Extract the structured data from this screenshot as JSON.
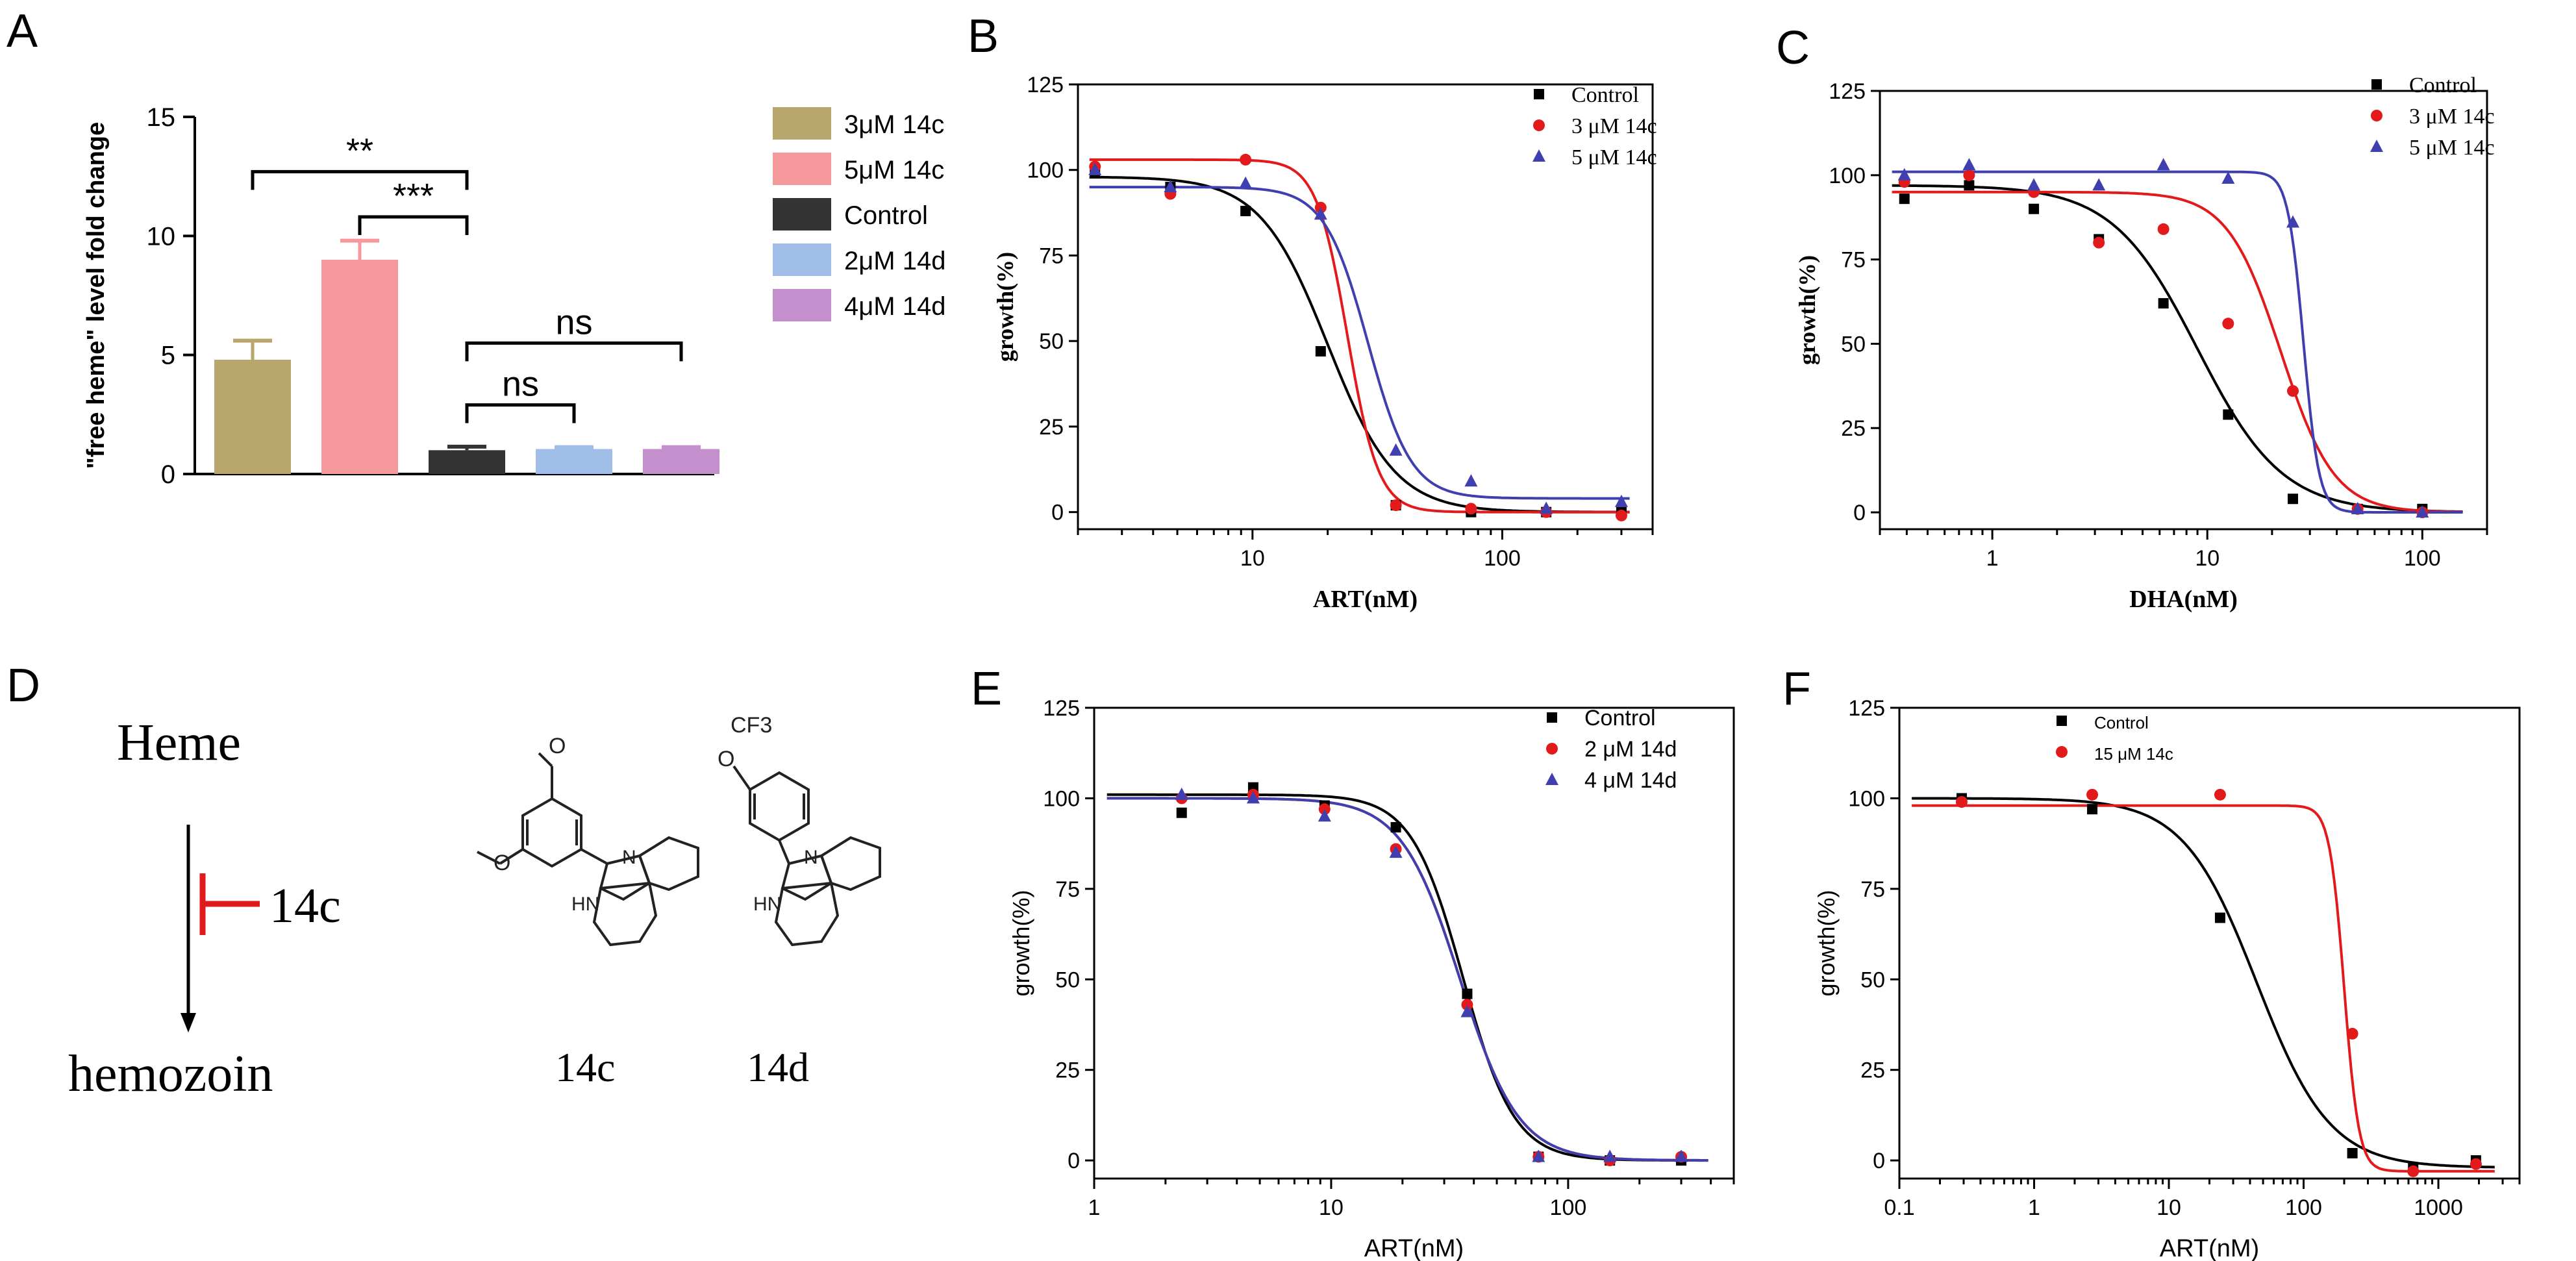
{
  "figure": {
    "panel_labels": [
      "A",
      "B",
      "C",
      "D",
      "E",
      "F"
    ]
  },
  "scheme": {
    "top": "Heme",
    "bottom": "hemozoin",
    "inhibitor": "14c",
    "compounds": [
      {
        "name": "14c",
        "substituent_label": "O"
      },
      {
        "name": "14d",
        "substituent_label": "CF3"
      }
    ],
    "ring_labels": {
      "hn": "HN",
      "n": "N"
    },
    "colors": {
      "inhibition": "#e31a1c",
      "arrow": "#000000"
    }
  },
  "chart_data": [
    {
      "panel": "A",
      "type": "bar",
      "ylabel": "\"free heme\" level fold change",
      "xlabel": "",
      "ylim": [
        0,
        15
      ],
      "yticks": [
        0,
        5,
        10,
        15
      ],
      "categories": [
        "3μM 14c",
        "5μM 14c",
        "Control",
        "2μM 14d",
        "4μM 14d"
      ],
      "values": [
        4.8,
        9.0,
        1.0,
        1.05,
        1.05
      ],
      "errors": [
        0.8,
        0.8,
        0.15,
        0.08,
        0.08
      ],
      "colors": [
        "#b9a66c",
        "#f5999c",
        "#333333",
        "#9fbde6",
        "#c38fcd"
      ],
      "legend": [
        "3μM 14c",
        "5μM 14c",
        "Control",
        "2μM 14d",
        "4μM 14d"
      ],
      "annotations": [
        {
          "text": "**",
          "from": 0,
          "to": 2,
          "y": 12.7
        },
        {
          "text": "***",
          "from": 1,
          "to": 2,
          "y": 10.8
        },
        {
          "text": "ns",
          "from": 2,
          "to": 4,
          "y": 5.5
        },
        {
          "text": "ns",
          "from": 2,
          "to": 3,
          "y": 2.9
        }
      ]
    },
    {
      "panel": "B",
      "type": "scatter",
      "xscale": "log",
      "xlabel": "ART(nM)",
      "ylabel": "growth(%)",
      "xlim": [
        2,
        400
      ],
      "ylim": [
        -5,
        125
      ],
      "xticks": [
        10,
        100
      ],
      "yticks": [
        0,
        25,
        50,
        75,
        100,
        125
      ],
      "legend_position": "top-right",
      "series": [
        {
          "name": "Control",
          "color": "#000000",
          "marker": "square",
          "fit": {
            "top": 98,
            "bottom": 0,
            "ec50": 20,
            "hill": 3.2
          },
          "x": [
            2.34,
            4.69,
            9.38,
            18.75,
            37.5,
            75,
            150,
            300
          ],
          "y": [
            99,
            95,
            88,
            47,
            2,
            0,
            0,
            0
          ]
        },
        {
          "name": "3 μM 14c",
          "color": "#e31a1c",
          "marker": "circle",
          "fit": {
            "top": 103,
            "bottom": 0,
            "ec50": 24,
            "hill": 7
          },
          "x": [
            2.34,
            4.69,
            9.38,
            18.75,
            37.5,
            75,
            150,
            300
          ],
          "y": [
            101,
            93,
            103,
            89,
            2,
            1,
            0,
            -1
          ]
        },
        {
          "name": "5 μM 14c",
          "color": "#3f3fb0",
          "marker": "triangle",
          "fit": {
            "top": 95,
            "bottom": 4,
            "ec50": 29,
            "hill": 5
          },
          "x": [
            2.34,
            4.69,
            9.38,
            18.75,
            37.5,
            75,
            150,
            300
          ],
          "y": [
            100,
            95,
            96,
            87,
            18,
            9,
            1,
            3
          ]
        }
      ]
    },
    {
      "panel": "C",
      "type": "scatter",
      "xscale": "log",
      "xlabel": "DHA(nM)",
      "ylabel": "growth(%)",
      "xlim": [
        0.3,
        200
      ],
      "ylim": [
        -5,
        125
      ],
      "xticks": [
        1,
        10,
        100
      ],
      "yticks": [
        0,
        25,
        50,
        75,
        100,
        125
      ],
      "legend_position": "top-right",
      "series": [
        {
          "name": "Control",
          "color": "#000000",
          "marker": "square",
          "fit": {
            "top": 97,
            "bottom": 0,
            "ec50": 9,
            "hill": 2.2
          },
          "x": [
            0.39,
            0.78,
            1.56,
            3.13,
            6.25,
            12.5,
            25,
            50,
            100
          ],
          "y": [
            93,
            97,
            90,
            81,
            62,
            29,
            4,
            1,
            1
          ]
        },
        {
          "name": "3 μM 14c",
          "color": "#e31a1c",
          "marker": "circle",
          "fit": {
            "top": 95,
            "bottom": 0,
            "ec50": 22,
            "hill": 3.5
          },
          "x": [
            0.39,
            0.78,
            1.56,
            3.13,
            6.25,
            12.5,
            25,
            50,
            100
          ],
          "y": [
            98,
            100,
            95,
            80,
            84,
            56,
            36,
            1,
            0
          ]
        },
        {
          "name": "5 μM 14c",
          "color": "#3f3fb0",
          "marker": "triangle",
          "fit": {
            "top": 101,
            "bottom": 0,
            "ec50": 28,
            "hill": 12
          },
          "x": [
            0.39,
            0.78,
            1.56,
            3.13,
            6.25,
            12.5,
            25,
            50,
            100
          ],
          "y": [
            100,
            103,
            97,
            97,
            103,
            99,
            86,
            1,
            0
          ]
        }
      ]
    },
    {
      "panel": "E",
      "type": "scatter",
      "xscale": "log",
      "xlabel": "ART(nM)",
      "ylabel": "growth(%)",
      "xlim": [
        1,
        500
      ],
      "ylim": [
        -5,
        125
      ],
      "xticks": [
        1,
        10,
        100
      ],
      "yticks": [
        0,
        25,
        50,
        75,
        100,
        125
      ],
      "legend_position": "top-right",
      "series": [
        {
          "name": "Control",
          "color": "#000000",
          "marker": "square",
          "fit": {
            "top": 101,
            "bottom": 0,
            "ec50": 36,
            "hill": 4
          },
          "x": [
            2.34,
            4.69,
            9.38,
            18.75,
            37.5,
            75,
            150,
            300
          ],
          "y": [
            96,
            103,
            98,
            92,
            46,
            1,
            0,
            0
          ]
        },
        {
          "name": "2 μM 14d",
          "color": "#e31a1c",
          "marker": "circle",
          "fit": {
            "top": 100,
            "bottom": 0,
            "ec50": 35,
            "hill": 3.5
          },
          "x": [
            2.34,
            4.69,
            9.38,
            18.75,
            37.5,
            75,
            150,
            300
          ],
          "y": [
            100,
            101,
            97,
            86,
            43,
            1,
            0,
            1
          ]
        },
        {
          "name": "4 μM 14d",
          "color": "#3f3fb0",
          "marker": "triangle",
          "fit": {
            "top": 100,
            "bottom": 0,
            "ec50": 35,
            "hill": 3.5
          },
          "x": [
            2.34,
            4.69,
            9.38,
            18.75,
            37.5,
            75,
            150,
            300
          ],
          "y": [
            101,
            100,
            95,
            85,
            41,
            1,
            1,
            1
          ]
        }
      ]
    },
    {
      "panel": "F",
      "type": "scatter",
      "xscale": "log",
      "xlabel": "ART(nM)",
      "ylabel": "growth(%)",
      "xlim": [
        0.1,
        4000
      ],
      "ylim": [
        -5,
        125
      ],
      "xticks": [
        0.1,
        1,
        10,
        100,
        1000
      ],
      "yticks": [
        0,
        25,
        50,
        75,
        100,
        125
      ],
      "legend_position": "top-right",
      "series": [
        {
          "name": "Control",
          "color": "#000000",
          "marker": "square",
          "fit": {
            "top": 100,
            "bottom": -2,
            "ec50": 45,
            "hill": 1.6
          },
          "x": [
            0.29,
            2.7,
            24,
            230,
            650,
            1900
          ],
          "y": [
            100,
            97,
            67,
            2,
            -2,
            0
          ]
        },
        {
          "name": "15 μM 14c",
          "color": "#e31a1c",
          "marker": "circle",
          "fit": {
            "top": 98,
            "bottom": -3,
            "ec50": 200,
            "hill": 8
          },
          "x": [
            0.29,
            2.7,
            24,
            230,
            650,
            1900
          ],
          "y": [
            99,
            101,
            101,
            35,
            -3,
            -1
          ]
        }
      ]
    }
  ]
}
